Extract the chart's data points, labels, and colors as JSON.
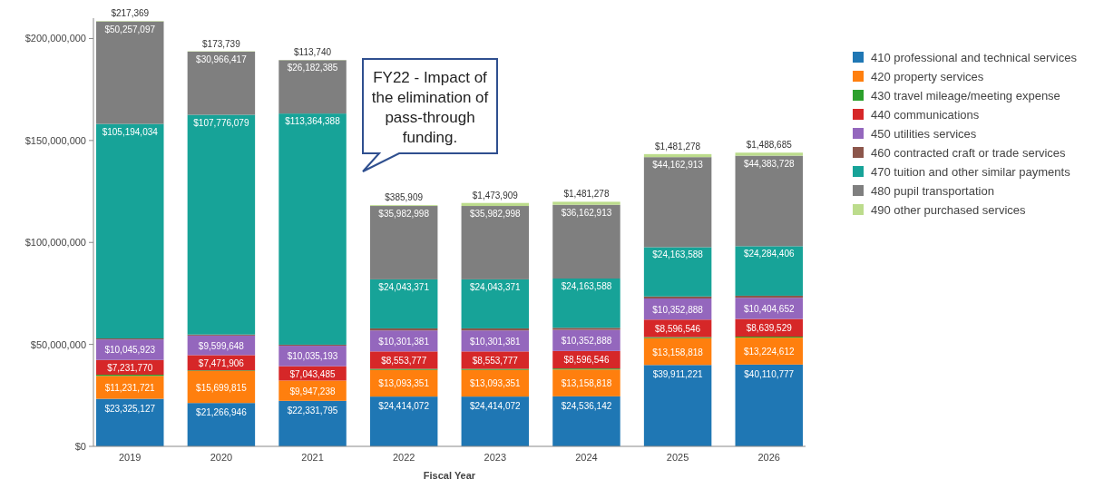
{
  "chart_data": {
    "type": "bar",
    "stacked": true,
    "xlabel": "Fiscal Year",
    "categories": [
      "2019",
      "2020",
      "2021",
      "2022",
      "2023",
      "2024",
      "2025",
      "2026"
    ],
    "ylim": [
      0,
      210000000
    ],
    "yticks": [
      {
        "value": 0,
        "label": "$0"
      },
      {
        "value": 50000000,
        "label": "$50,000,000"
      },
      {
        "value": 100000000,
        "label": "$100,000,000"
      },
      {
        "value": 150000000,
        "label": "$150,000,000"
      },
      {
        "value": 200000000,
        "label": "$200,000,000"
      }
    ],
    "legend": "right",
    "grid": false,
    "annotations": [
      "FY22 - Impact of the elimination of pass-through funding."
    ],
    "series": [
      {
        "name": "410 professional and technical services",
        "color": "#1f77b4",
        "values": [
          23325127,
          21266946,
          22331795,
          24414072,
          24414072,
          24536142,
          39911221,
          40110777
        ],
        "value_labels": [
          "$23,325,127",
          "$21,266,946",
          "$22,331,795",
          "$24,414,072",
          "$24,414,072",
          "$24,536,142",
          "$39,911,221",
          "$40,110,777"
        ]
      },
      {
        "name": "420 property services",
        "color": "#ff7f0e",
        "values": [
          11231721,
          15699815,
          9947238,
          13093351,
          13093351,
          13158818,
          13158818,
          13224612
        ],
        "value_labels": [
          "$11,231,721",
          "$15,699,815",
          "$9,947,238",
          "$13,093,351",
          "$13,093,351",
          "$13,158,818",
          "$13,158,818",
          "$13,224,612"
        ]
      },
      {
        "name": "430 travel mileage/meeting expense",
        "color": "#2ca02c",
        "values": [
          600000,
          300000,
          null,
          500000,
          500000,
          500000,
          500000,
          500000
        ],
        "value_labels": [
          null,
          null,
          null,
          null,
          null,
          null,
          null,
          null
        ]
      },
      {
        "name": "440 communications",
        "color": "#d62728",
        "values": [
          7231770,
          7471906,
          7043485,
          8553777,
          8553777,
          8596546,
          8596546,
          8639529
        ],
        "value_labels": [
          "$7,231,770",
          "$7,471,906",
          "$7,043,485",
          "$8,553,777",
          "$8,553,777",
          "$8,596,546",
          "$8,596,546",
          "$8,639,529"
        ]
      },
      {
        "name": "450 utilities services",
        "color": "#9467bd",
        "values": [
          10045923,
          9599648,
          10035193,
          10301381,
          10301381,
          10352888,
          10352888,
          10404652
        ],
        "value_labels": [
          "$10,045,923",
          "$9,599,648",
          "$10,035,193",
          "$10,301,381",
          "$10,301,381",
          "$10,352,888",
          "$10,352,888",
          "$10,404,652"
        ]
      },
      {
        "name": "460 contracted craft or trade services",
        "color": "#8c564b",
        "values": [
          500000,
          500000,
          500000,
          1000000,
          1000000,
          1000000,
          1000000,
          1000000
        ],
        "value_labels": [
          null,
          null,
          null,
          null,
          null,
          null,
          null,
          null
        ]
      },
      {
        "name": "470 tuition and other similar payments",
        "color": "#17a398",
        "values": [
          105194034,
          107776079,
          113364388,
          24043371,
          24043371,
          24163588,
          24163588,
          24284406
        ],
        "value_labels": [
          "$105,194,034",
          "$107,776,079",
          "$113,364,388",
          "$24,043,371",
          "$24,043,371",
          "$24,163,588",
          "$24,163,588",
          "$24,284,406"
        ]
      },
      {
        "name": "480 pupil transportation",
        "color": "#7f7f7f",
        "values": [
          50257097,
          30966417,
          26182385,
          35982998,
          35982998,
          36162913,
          44162913,
          44383728
        ],
        "value_labels": [
          "$50,257,097",
          "$30,966,417",
          "$26,182,385",
          "$35,982,998",
          "$35,982,998",
          "$36,162,913",
          "$44,162,913",
          "$44,383,728"
        ]
      },
      {
        "name": "490 other purchased services",
        "color": "#bcdc8c",
        "values": [
          217369,
          173739,
          113740,
          385909,
          1473909,
          1481278,
          1481278,
          1488685
        ],
        "value_labels": [
          "$217,369",
          "$173,739",
          "$113,740",
          "$385,909",
          "$1,473,909",
          "$1,481,278",
          "$1,481,278",
          "$1,488,685"
        ]
      }
    ]
  }
}
